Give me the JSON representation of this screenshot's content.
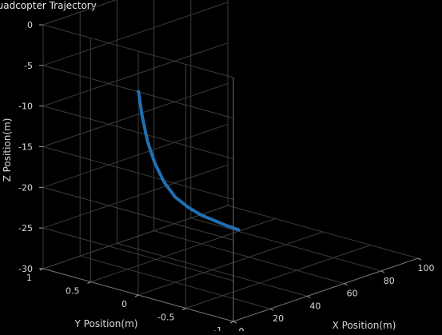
{
  "chart_data": {
    "type": "line",
    "projection": "3d",
    "title": "Quadcopter Trajectory",
    "xlabel": "X Position(m)",
    "ylabel": "Y Position(m)",
    "zlabel": "Z Position(m)",
    "xlim": [
      0,
      100
    ],
    "ylim": [
      -1,
      1
    ],
    "zlim": [
      -30,
      0
    ],
    "x_ticks": [
      "0",
      "20",
      "40",
      "60",
      "80",
      "100"
    ],
    "y_ticks": [
      "1",
      "0.5",
      "0",
      "-0.5",
      "-1"
    ],
    "z_ticks": [
      "0",
      "-5",
      "-10",
      "-15",
      "-20",
      "-25",
      "-30"
    ],
    "grid": true,
    "background": "#000000",
    "series": [
      {
        "color": "#1f6fb3",
        "x": [
          0,
          2,
          5,
          9,
          14,
          20,
          27,
          34,
          41,
          48,
          55
        ],
        "y": [
          0,
          0,
          0,
          0,
          0,
          0,
          0,
          0,
          0,
          0,
          0
        ],
        "z": [
          -4.8,
          -8,
          -11.5,
          -14.5,
          -17.2,
          -19.5,
          -21.3,
          -22.8,
          -24,
          -25.2,
          -26.3
        ]
      }
    ]
  }
}
